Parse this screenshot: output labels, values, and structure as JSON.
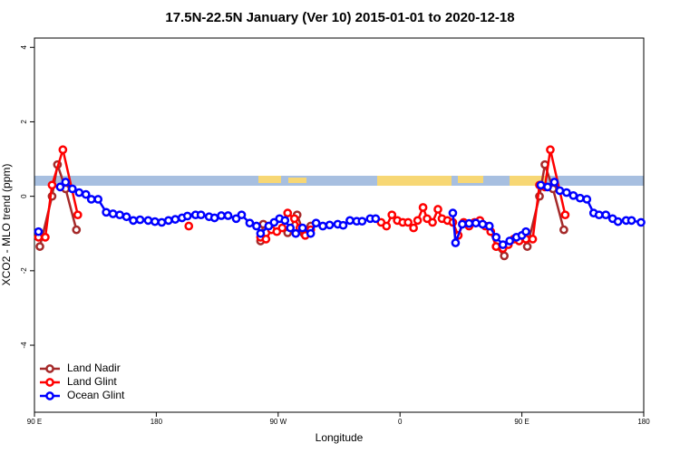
{
  "chart_data": {
    "type": "line",
    "title": "17.5N-22.5N January (Ver 10)   2015-01-01 to 2020-12-18",
    "x_label": "Longitude",
    "y_label": "XCO2 - MLO trend (ppm)",
    "xlim": [
      90,
      540
    ],
    "ylim": [
      -5.8,
      4.25
    ],
    "xticks": [
      {
        "value": 90,
        "label": "90 E"
      },
      180,
      {
        "value": 270,
        "label": "90 W"
      },
      {
        "value": 360,
        "label": "0"
      },
      {
        "value": 450,
        "label": "90 E"
      },
      {
        "value": 540,
        "label": "180"
      }
    ],
    "yticks": [
      -4,
      -2,
      0,
      2,
      4
    ],
    "legend": "bottom-left",
    "series": [
      {
        "name": "Land Nadir",
        "color": "#a52a2a",
        "x": [
          94,
          103,
          107,
          113,
          121,
          null,
          257,
          259,
          null,
          277,
          284,
          289,
          294,
          null,
          431,
          437,
          null,
          454,
          463,
          467,
          473,
          481
        ],
        "values": [
          -1.35,
          0,
          0.85,
          0.2,
          -0.9,
          null,
          -1.2,
          -0.75,
          null,
          -0.98,
          -0.5,
          -1.0,
          -0.8,
          null,
          -1.35,
          -1.6,
          null,
          -1.35,
          0,
          0.85,
          0.2,
          -0.9
        ]
      },
      {
        "name": "Land Glint",
        "color": "#ff0000",
        "x": [
          93,
          98,
          103,
          111,
          122,
          null,
          204,
          null,
          257,
          261,
          265,
          269,
          273,
          277,
          282,
          286,
          290,
          294,
          null,
          346,
          350,
          354,
          358,
          362,
          366,
          370,
          373,
          377,
          380,
          384,
          388,
          391,
          395,
          399,
          403,
          407,
          411,
          415,
          419,
          423,
          427,
          431,
          436,
          440,
          444,
          448,
          453,
          458,
          463,
          467,
          471,
          482
        ],
        "values": [
          -1.1,
          -1.1,
          0.3,
          1.25,
          -0.5,
          null,
          -0.8,
          null,
          -1.1,
          -1.15,
          -0.9,
          -0.95,
          -0.85,
          -0.45,
          -0.6,
          -0.85,
          -1.05,
          -0.9,
          null,
          -0.7,
          -0.8,
          -0.5,
          -0.65,
          -0.7,
          -0.7,
          -0.85,
          -0.65,
          -0.3,
          -0.6,
          -0.7,
          -0.35,
          -0.6,
          -0.65,
          -0.7,
          -1.05,
          -0.7,
          -0.8,
          -0.7,
          -0.65,
          -0.8,
          -0.95,
          -1.35,
          -1.4,
          -1.3,
          -1.15,
          -1.2,
          -1.15,
          -1.15,
          0.3,
          0.25,
          1.25,
          -0.5
        ]
      },
      {
        "name": "Ocean Glint",
        "color": "#0000ff",
        "x": [
          93,
          null,
          109,
          113,
          118,
          123,
          128,
          132,
          137,
          143,
          148,
          153,
          158,
          163,
          168,
          174,
          179,
          184,
          189,
          194,
          199,
          203,
          209,
          213,
          219,
          223,
          228,
          233,
          239,
          243,
          249,
          254,
          257,
          263,
          267,
          271,
          275,
          279,
          283,
          288,
          294,
          298,
          303,
          308,
          314,
          318,
          323,
          328,
          332,
          338,
          342,
          null,
          399,
          401,
          406,
          411,
          416,
          421,
          426,
          431,
          436,
          441,
          446,
          450,
          453,
          null,
          464,
          469,
          474,
          478,
          483,
          488,
          493,
          498,
          503,
          507,
          512,
          517,
          521,
          527,
          531,
          538
        ],
        "values": [
          -0.95,
          null,
          0.25,
          0.38,
          0.2,
          0.1,
          0.05,
          -0.08,
          -0.08,
          -0.43,
          -0.47,
          -0.5,
          -0.55,
          -0.65,
          -0.63,
          -0.65,
          -0.68,
          -0.7,
          -0.65,
          -0.62,
          -0.58,
          -0.53,
          -0.5,
          -0.5,
          -0.55,
          -0.58,
          -0.52,
          -0.52,
          -0.6,
          -0.5,
          -0.72,
          -0.8,
          -1.0,
          -0.8,
          -0.7,
          -0.6,
          -0.65,
          -0.85,
          -1.0,
          -0.85,
          -1.0,
          -0.72,
          -0.8,
          -0.77,
          -0.75,
          -0.78,
          -0.65,
          -0.67,
          -0.67,
          -0.6,
          -0.6,
          null,
          -0.45,
          -1.25,
          -0.75,
          -0.73,
          -0.72,
          -0.75,
          -0.8,
          -1.1,
          -1.3,
          -1.2,
          -1.1,
          -1.05,
          -0.95,
          null,
          0.3,
          0.25,
          0.38,
          0.15,
          0.1,
          0.02,
          -0.05,
          -0.08,
          -0.45,
          -0.5,
          -0.5,
          -0.6,
          -0.68,
          -0.65,
          -0.65,
          -0.7
        ]
      }
    ]
  }
}
